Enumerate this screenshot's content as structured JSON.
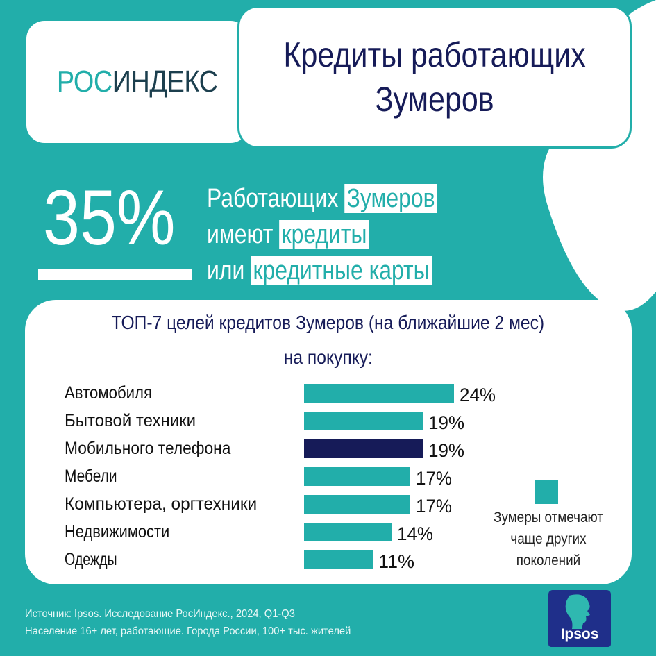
{
  "logo": {
    "part1": "РОС",
    "part2": "ИНДЕКС"
  },
  "title": {
    "line1": "Кредиты работающих",
    "line2": "Зумеров"
  },
  "headline": {
    "percent": "35%",
    "line1_plain": "Работающих",
    "line1_highlight": "Зумеров",
    "line2_plain": "имеют",
    "line2_highlight": "кредиты",
    "line3_plain": "или",
    "line3_highlight": "кредитные карты"
  },
  "chart_data": {
    "type": "bar",
    "orientation": "horizontal",
    "title": "ТОП-7 целей кредитов Зумеров (на ближайшие 2 мес)",
    "subtitle": "на покупку:",
    "categories": [
      "Автомобиля",
      "Бытовой техники",
      "Мобильного телефона",
      "Мебели",
      "Компьютера, оргтехники",
      "Недвижимости",
      "Одежды"
    ],
    "values": [
      24,
      19,
      19,
      17,
      17,
      14,
      11
    ],
    "value_labels": [
      "24%",
      "19%",
      "19%",
      "17%",
      "17%",
      "14%",
      "11%"
    ],
    "highlighted_category": "Мобильного телефона",
    "grid": false,
    "legend_placement": "right"
  },
  "legend": {
    "text": "Зумеры отмечают чаще других поколений"
  },
  "colors": {
    "teal": "#22aeaa",
    "navy": "#161b58",
    "white": "#ffffff",
    "ipsos_blue": "#1f2f8a"
  },
  "source": {
    "line1": "Источник: Ipsos. Исследование РосИндекс., 2024, Q1-Q3",
    "line2": "Население 16+ лет, работающие. Города России, 100+ тыс. жителей"
  },
  "ipsos_logo": {
    "text": "Ipsos"
  }
}
